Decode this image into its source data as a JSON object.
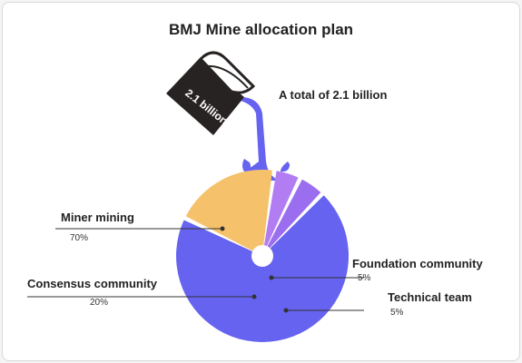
{
  "chart_data": {
    "type": "pie",
    "title": "BMJ Mine allocation plan",
    "annotation": "A total of 2.1 billion",
    "cup_label": "2.1 billion",
    "slices": [
      {
        "label": "Miner mining",
        "value": 70,
        "pct_label": "70%",
        "color": "#6563f0"
      },
      {
        "label": "Consensus community",
        "value": 20,
        "pct_label": "20%",
        "color": "#f5c26b"
      },
      {
        "label": "Foundation community",
        "value": 5,
        "pct_label": "5%",
        "color": "#b27cf2"
      },
      {
        "label": "Technical team",
        "value": 5,
        "pct_label": "5%",
        "color": "#9b6ef0"
      }
    ],
    "legend": "none"
  }
}
